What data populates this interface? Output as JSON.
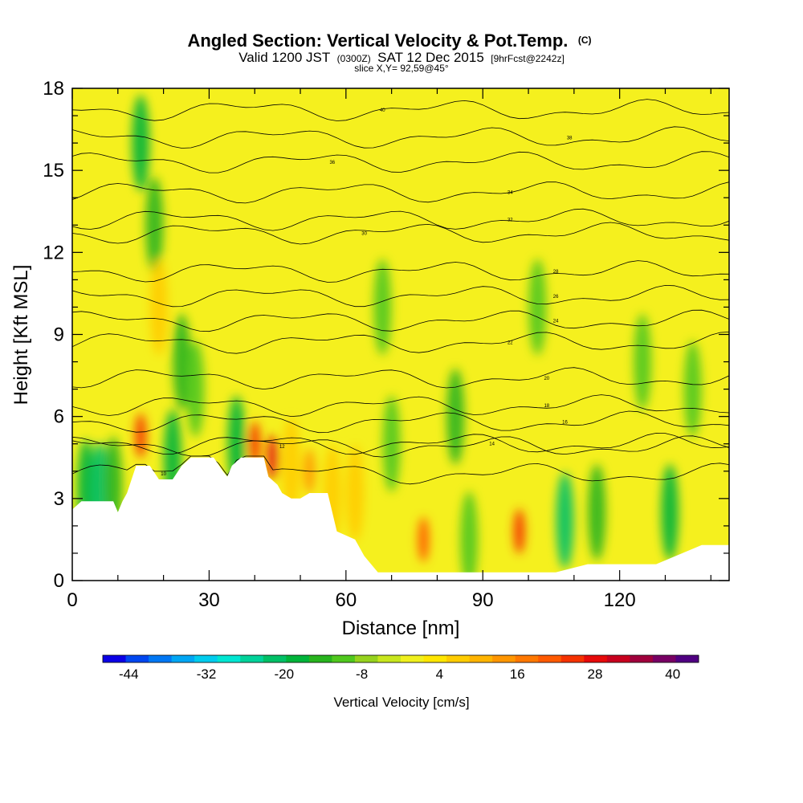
{
  "header": {
    "title_main": "Angled Section: Vertical Velocity & Pot.Temp.",
    "title_mark": "(C)",
    "subtitle_part1": "Valid 1200 JST",
    "subtitle_part2": "(0300Z)",
    "subtitle_part3": "SAT 12 Dec 2015",
    "subtitle_part4": "[9hrFcst@2242z]",
    "slice": "slice X,Y= 92,59@45°"
  },
  "chart_data": {
    "type": "heatmap",
    "xlabel": "Distance [nm]",
    "ylabel": "Height [Kft MSL]",
    "xlim": [
      0,
      144
    ],
    "ylim": [
      0,
      18
    ],
    "x_ticks": [
      "0",
      "30",
      "60",
      "90",
      "120"
    ],
    "y_ticks": [
      "0",
      "3",
      "6",
      "9",
      "12",
      "15",
      "18"
    ],
    "x_tick_values": [
      0,
      30,
      60,
      90,
      120
    ],
    "y_tick_values": [
      0,
      3,
      6,
      9,
      12,
      15,
      18
    ],
    "terrain": [
      [
        0,
        2.6
      ],
      [
        2,
        2.9
      ],
      [
        9,
        2.9
      ],
      [
        10,
        2.5
      ],
      [
        11,
        2.9
      ],
      [
        12,
        3.2
      ],
      [
        14,
        4.2
      ],
      [
        17,
        4.2
      ],
      [
        19,
        3.7
      ],
      [
        22,
        3.7
      ],
      [
        24,
        4.2
      ],
      [
        26,
        4.5
      ],
      [
        31,
        4.5
      ],
      [
        33,
        4.0
      ],
      [
        34,
        3.8
      ],
      [
        35,
        4.2
      ],
      [
        37,
        4.5
      ],
      [
        42,
        4.5
      ],
      [
        43,
        3.8
      ],
      [
        45,
        3.5
      ],
      [
        46,
        3.2
      ],
      [
        48,
        3.0
      ],
      [
        50,
        3.0
      ],
      [
        52,
        3.2
      ],
      [
        56,
        3.2
      ],
      [
        58,
        1.8
      ],
      [
        62,
        1.5
      ],
      [
        64,
        0.9
      ],
      [
        67,
        0.3
      ],
      [
        106,
        0.3
      ],
      [
        113,
        0.6
      ],
      [
        128,
        0.6
      ],
      [
        138,
        1.3
      ],
      [
        144,
        1.3
      ]
    ],
    "velocity_cells": [
      {
        "x": 3,
        "y": 3.4,
        "value": -14
      },
      {
        "x": 6,
        "y": 3.3,
        "value": -18
      },
      {
        "x": 9,
        "y": 3.5,
        "value": -10
      },
      {
        "x": 15,
        "y": 5.3,
        "value": 34
      },
      {
        "x": 15,
        "y": 16,
        "value": -14
      },
      {
        "x": 18,
        "y": 13,
        "value": -10
      },
      {
        "x": 19,
        "y": 10,
        "value": 14
      },
      {
        "x": 22,
        "y": 4.5,
        "value": -16
      },
      {
        "x": 24,
        "y": 8,
        "value": -12
      },
      {
        "x": 27,
        "y": 7,
        "value": -8
      },
      {
        "x": 36,
        "y": 5,
        "value": -16
      },
      {
        "x": 40,
        "y": 5,
        "value": 34
      },
      {
        "x": 44,
        "y": 4.5,
        "value": 38
      },
      {
        "x": 48,
        "y": 4.2,
        "value": 14
      },
      {
        "x": 52,
        "y": 4,
        "value": 20
      },
      {
        "x": 57,
        "y": 3.2,
        "value": 14
      },
      {
        "x": 62,
        "y": 3.2,
        "value": 12
      },
      {
        "x": 68,
        "y": 10,
        "value": -8
      },
      {
        "x": 70,
        "y": 5,
        "value": -8
      },
      {
        "x": 77,
        "y": 1.5,
        "value": 30
      },
      {
        "x": 84,
        "y": 6,
        "value": -12
      },
      {
        "x": 87,
        "y": 1.5,
        "value": -8
      },
      {
        "x": 98,
        "y": 1.8,
        "value": 34
      },
      {
        "x": 102,
        "y": 10,
        "value": -8
      },
      {
        "x": 108,
        "y": 2.2,
        "value": -18
      },
      {
        "x": 115,
        "y": 2.5,
        "value": -10
      },
      {
        "x": 125,
        "y": 8,
        "value": -6
      },
      {
        "x": 131,
        "y": 2.5,
        "value": -14
      },
      {
        "x": 136,
        "y": 7,
        "value": -6
      }
    ],
    "theta_levels": [
      {
        "label": "10",
        "x": 20,
        "h": 3.9
      },
      {
        "label": "12",
        "x": 46,
        "h": 4.9
      },
      {
        "label": "14",
        "x": 92,
        "h": 5
      },
      {
        "label": "16",
        "x": 108,
        "h": 5.8
      },
      {
        "label": "18",
        "x": 104,
        "h": 6.4
      },
      {
        "label": "20",
        "x": 104,
        "h": 7.4
      },
      {
        "label": "22",
        "x": 96,
        "h": 8.7
      },
      {
        "label": "24",
        "x": 106,
        "h": 9.5
      },
      {
        "label": "26",
        "x": 106,
        "h": 10.4
      },
      {
        "label": "28",
        "x": 106,
        "h": 11.3
      },
      {
        "label": "30",
        "x": 64,
        "h": 12.7
      },
      {
        "label": "32",
        "x": 96,
        "h": 13.2
      },
      {
        "label": "34",
        "x": 96,
        "h": 14.2
      },
      {
        "label": "36",
        "x": 57,
        "h": 15.3
      },
      {
        "label": "38",
        "x": 109,
        "h": 16.2
      },
      {
        "label": "40",
        "x": 68,
        "h": 17.2
      }
    ],
    "colorbar": {
      "label": "Vertical Velocity [cm/s]",
      "tick_labels": [
        "-44",
        "-32",
        "-20",
        "-8",
        "4",
        "16",
        "28",
        "40"
      ],
      "tick_values": [
        -44,
        -32,
        -20,
        -8,
        4,
        16,
        28,
        40
      ],
      "min": -48,
      "max": 44,
      "step": 4,
      "colors": [
        "#0b00e6",
        "#0047f0",
        "#0077f4",
        "#00a6f4",
        "#00ccee",
        "#00e6d2",
        "#00d29a",
        "#00c066",
        "#00b43a",
        "#28b41e",
        "#50c81e",
        "#96d21e",
        "#c8e61e",
        "#f0f01e",
        "#ffe600",
        "#ffcc00",
        "#ffb400",
        "#ff9600",
        "#ff7800",
        "#ff5a00",
        "#f53200",
        "#e60a0a",
        "#c8001e",
        "#a0003c",
        "#780064",
        "#500082"
      ]
    }
  }
}
